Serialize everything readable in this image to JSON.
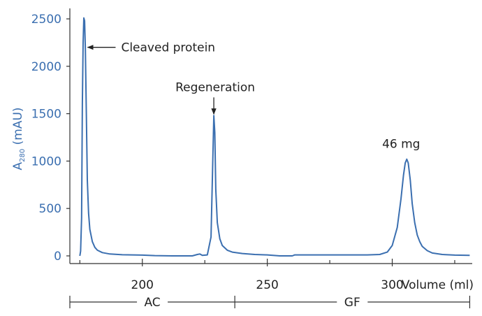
{
  "chart_data": {
    "type": "line",
    "title": "",
    "ylabel_main": "A",
    "ylabel_sub": "280",
    "ylabel_unit": " (mAU)",
    "xlabel": "Volume (ml)",
    "xlim": [
      171,
      332
    ],
    "ylim": [
      0,
      2500
    ],
    "yticks": [
      0,
      500,
      1000,
      1500,
      2000,
      2500
    ],
    "xticks_major": [
      200,
      250,
      300
    ],
    "xticks_minor": [
      175,
      225,
      275,
      325
    ],
    "grid": false,
    "color": "#3b6fb0",
    "series": [
      {
        "points": [
          [
            175,
            0
          ],
          [
            175.3,
            50
          ],
          [
            175.7,
            400
          ],
          [
            176.0,
            1600
          ],
          [
            176.3,
            2250
          ],
          [
            176.6,
            2510
          ],
          [
            176.9,
            2480
          ],
          [
            177.2,
            2180
          ],
          [
            177.6,
            1500
          ],
          [
            178.0,
            800
          ],
          [
            178.5,
            450
          ],
          [
            179.0,
            280
          ],
          [
            180,
            150
          ],
          [
            181,
            90
          ],
          [
            182,
            60
          ],
          [
            184,
            35
          ],
          [
            187,
            20
          ],
          [
            192,
            12
          ],
          [
            200,
            8
          ],
          [
            205,
            3
          ],
          [
            212,
            0
          ],
          [
            220,
            0
          ],
          [
            222,
            15
          ],
          [
            223,
            20
          ],
          [
            224,
            5
          ],
          [
            226,
            10
          ],
          [
            227.5,
            200
          ],
          [
            228.2,
            1000
          ],
          [
            228.6,
            1480
          ],
          [
            229.0,
            1300
          ],
          [
            229.4,
            700
          ],
          [
            230,
            350
          ],
          [
            231,
            180
          ],
          [
            232,
            110
          ],
          [
            234,
            60
          ],
          [
            236,
            40
          ],
          [
            240,
            25
          ],
          [
            245,
            15
          ],
          [
            250,
            10
          ],
          [
            255,
            0
          ],
          [
            260,
            0
          ],
          [
            261,
            10
          ],
          [
            270,
            10
          ],
          [
            280,
            10
          ],
          [
            290,
            10
          ],
          [
            295,
            15
          ],
          [
            298,
            40
          ],
          [
            300,
            110
          ],
          [
            302,
            300
          ],
          [
            303.5,
            600
          ],
          [
            304.5,
            850
          ],
          [
            305.2,
            980
          ],
          [
            305.8,
            1020
          ],
          [
            306.4,
            980
          ],
          [
            307.2,
            800
          ],
          [
            308,
            550
          ],
          [
            309,
            350
          ],
          [
            310,
            220
          ],
          [
            311,
            150
          ],
          [
            312,
            100
          ],
          [
            314,
            55
          ],
          [
            316,
            30
          ],
          [
            320,
            15
          ],
          [
            325,
            8
          ],
          [
            331,
            5
          ]
        ]
      }
    ],
    "annotations": [
      {
        "text": "Cleaved protein",
        "x": 177,
        "y": 2200
      },
      {
        "text": "Regeneration",
        "x": 228.6,
        "y": 1480
      },
      {
        "text": "46 mg",
        "x": 305.8,
        "y": 1020
      }
    ],
    "phases": [
      {
        "label": "AC",
        "start": 171,
        "end": 237
      },
      {
        "label": "GF",
        "start": 237,
        "end": 331
      }
    ]
  }
}
